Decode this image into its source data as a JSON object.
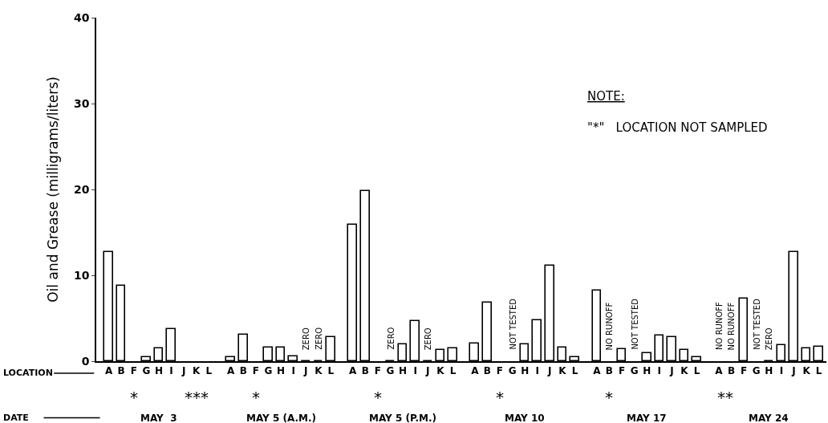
{
  "chart_data": {
    "type": "bar",
    "ylabel": "Oil and Grease (milligrams/liters)",
    "categories": [
      "A",
      "B",
      "F",
      "G",
      "H",
      "I",
      "J",
      "K",
      "L",
      "A",
      "B",
      "F",
      "G",
      "H",
      "I",
      "J",
      "K",
      "L",
      "A",
      "B",
      "F",
      "G",
      "H",
      "I",
      "J",
      "K",
      "L",
      "A",
      "B",
      "F",
      "G",
      "H",
      "I",
      "J",
      "K",
      "L",
      "A",
      "B",
      "F",
      "G",
      "H",
      "I",
      "J",
      "K",
      "L",
      "A",
      "B",
      "F",
      "G",
      "H",
      "I",
      "J",
      "K",
      "L"
    ],
    "values": [
      12.7,
      8.8,
      null,
      0.5,
      1.5,
      3.7,
      null,
      null,
      null,
      0.5,
      3.1,
      null,
      1.6,
      1.6,
      0.6,
      0,
      0,
      2.8,
      15.9,
      19.8,
      null,
      0,
      2.0,
      4.7,
      0,
      1.3,
      1.5,
      2.1,
      6.8,
      null,
      null,
      2.0,
      4.8,
      11.1,
      1.6,
      0.5,
      8.2,
      null,
      1.4,
      null,
      0.9,
      3.0,
      2.8,
      1.3,
      0.5,
      null,
      null,
      7.3,
      null,
      0,
      1.9,
      12.7,
      1.5,
      1.7
    ],
    "value_labels": [
      null,
      null,
      null,
      null,
      null,
      null,
      null,
      null,
      null,
      null,
      null,
      null,
      null,
      null,
      null,
      "ZERO",
      "ZERO",
      null,
      null,
      null,
      null,
      "ZERO",
      null,
      null,
      "ZERO",
      null,
      null,
      null,
      null,
      null,
      "NOT TESTED",
      null,
      null,
      null,
      null,
      null,
      null,
      "NO RUNOFF",
      null,
      "NOT TESTED",
      null,
      null,
      null,
      null,
      null,
      "NO RUNOFF",
      "NO RUNOFF",
      null,
      "NOT TESTED",
      "ZERO",
      null,
      null,
      null,
      null
    ],
    "color": "#000000",
    "ylim": [
      0,
      40
    ],
    "yticks": [
      0,
      10,
      20,
      30,
      40
    ],
    "legend": false,
    "annotations": [
      "*",
      "***",
      "*",
      "*",
      "*",
      "*",
      "**",
      "MAY  3",
      "MAY 5 (A.M.)",
      "MAY 5 (P.M.)",
      "MAY 10",
      "MAY 17",
      "MAY 24",
      "LOCATION",
      "DATE",
      "NOTE:",
      "\"*\"   LOCATION NOT SAMPLED"
    ]
  }
}
